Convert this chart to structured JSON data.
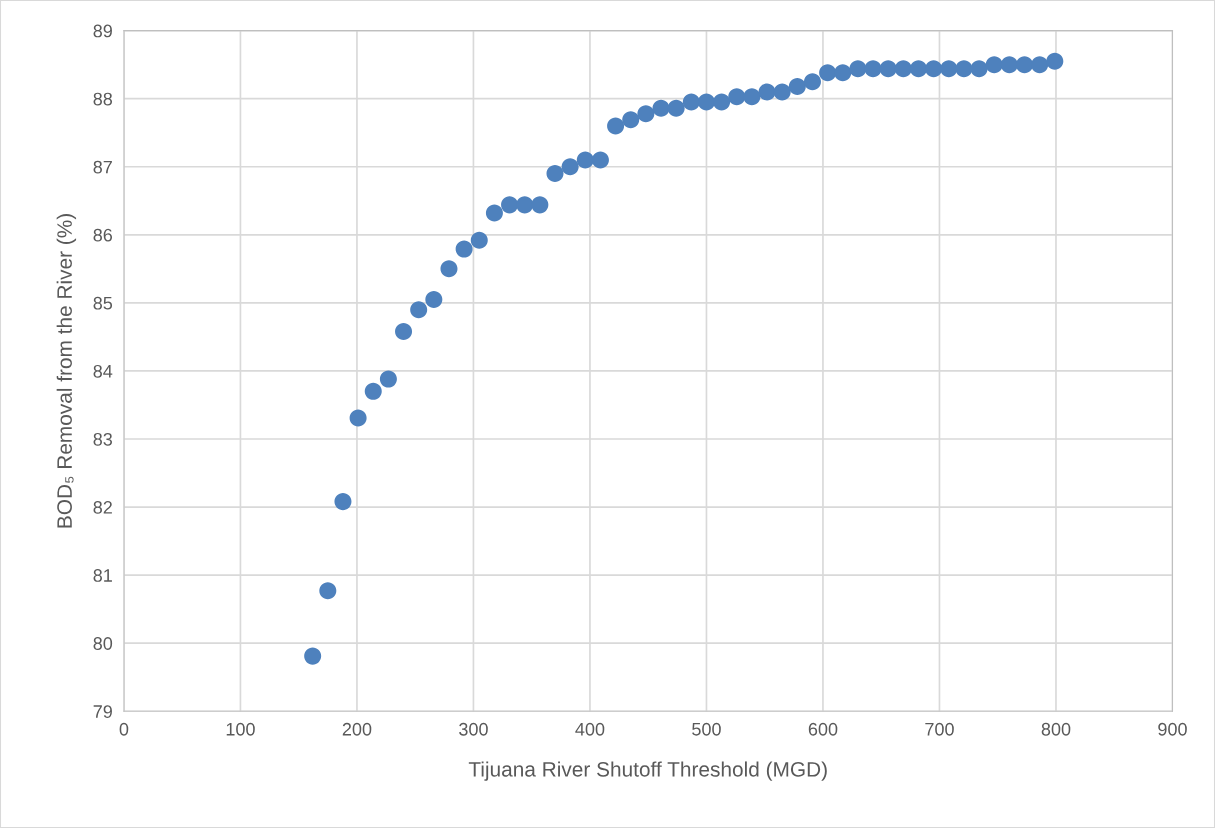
{
  "chart_data": {
    "type": "scatter",
    "xlabel": "Tijuana River Shutoff Threshold (MGD)",
    "ylabel": "BOD₅ Removal from the River (%)",
    "series": [
      {
        "color": "#4e81bd",
        "x": [
          162,
          175,
          188,
          201,
          214,
          227,
          240,
          253,
          266,
          279,
          292,
          305,
          318,
          331,
          344,
          357,
          370,
          383,
          396,
          409,
          422,
          435,
          448,
          461,
          474,
          487,
          500,
          513,
          526,
          539,
          552,
          565,
          578,
          591,
          604,
          617,
          630,
          643,
          656,
          669,
          682,
          695,
          708,
          721,
          734,
          747,
          760,
          773,
          786,
          799
        ],
        "values": [
          79.81,
          80.77,
          82.08,
          83.31,
          83.7,
          83.88,
          84.58,
          84.9,
          85.05,
          85.5,
          85.79,
          85.92,
          86.32,
          86.44,
          86.44,
          86.44,
          86.9,
          87.0,
          87.1,
          87.1,
          87.6,
          87.69,
          87.78,
          87.86,
          87.86,
          87.95,
          87.95,
          87.95,
          88.03,
          88.03,
          88.1,
          88.1,
          88.18,
          88.25,
          88.38,
          88.38,
          88.44,
          88.44,
          88.44,
          88.44,
          88.44,
          88.44,
          88.44,
          88.44,
          88.44,
          88.5,
          88.5,
          88.5,
          88.5,
          88.55
        ]
      }
    ],
    "xlim": [
      0,
      900
    ],
    "xticks": [
      0,
      100,
      200,
      300,
      400,
      500,
      600,
      700,
      800,
      900
    ],
    "ylim": [
      79,
      89
    ],
    "yticks": [
      79,
      80,
      81,
      82,
      83,
      84,
      85,
      86,
      87,
      88,
      89
    ],
    "grid": true,
    "marker": "circle",
    "legend": false
  }
}
